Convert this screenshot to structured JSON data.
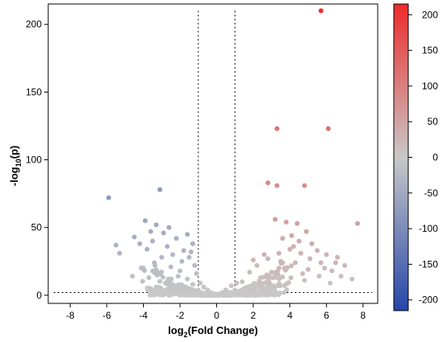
{
  "chart_data": {
    "type": "scatter",
    "title": "",
    "xlabel": {
      "prefix": "log",
      "subscript": "2",
      "suffix": "(Fold Change)"
    },
    "ylabel": {
      "prefix": "-log",
      "subscript": "10",
      "suffix": "(p)"
    },
    "xlim": [
      -9.2,
      8.8
    ],
    "ylim": [
      -6,
      215
    ],
    "xticks": [
      -8,
      -6,
      -4,
      -2,
      0,
      2,
      4,
      6,
      8
    ],
    "yticks": [
      0,
      50,
      100,
      150,
      200
    ],
    "thresholds": {
      "fold_change_lines": [
        -1,
        1
      ],
      "p_value_line": 2
    },
    "grid": false,
    "colorbar": {
      "placement": "right",
      "range": [
        -215,
        215
      ],
      "ticks": [
        200,
        150,
        100,
        50,
        0,
        -50,
        -100,
        -150,
        -200
      ],
      "colors": {
        "high": "#ef2b2b",
        "mid": "#c8c8c8",
        "low": "#2546a8"
      }
    },
    "colors": {
      "up_max": "#ef2b2b",
      "neutral": "#c8c8c8",
      "down_max": "#2546a8"
    },
    "point_color_rule": "color = colorbar value of sign(log2FC) * (-log10 p)",
    "points": [
      {
        "x": 5.7,
        "y": 210
      },
      {
        "x": 3.3,
        "y": 123
      },
      {
        "x": 6.1,
        "y": 123
      },
      {
        "x": 2.8,
        "y": 83
      },
      {
        "x": 3.3,
        "y": 81
      },
      {
        "x": 4.8,
        "y": 81
      },
      {
        "x": 7.7,
        "y": 53
      },
      {
        "x": 3.2,
        "y": 56
      },
      {
        "x": 3.8,
        "y": 54
      },
      {
        "x": 4.4,
        "y": 53
      },
      {
        "x": 4.9,
        "y": 47
      },
      {
        "x": 4.1,
        "y": 44
      },
      {
        "x": 3.6,
        "y": 42
      },
      {
        "x": 4.5,
        "y": 40
      },
      {
        "x": 5.2,
        "y": 38
      },
      {
        "x": 4.2,
        "y": 36
      },
      {
        "x": 5.5,
        "y": 33
      },
      {
        "x": 6.0,
        "y": 30
      },
      {
        "x": 6.6,
        "y": 28
      },
      {
        "x": 7.0,
        "y": 22
      },
      {
        "x": 6.8,
        "y": 14
      },
      {
        "x": 7.4,
        "y": 12
      },
      {
        "x": 6.3,
        "y": 18
      },
      {
        "x": 5.7,
        "y": 24
      },
      {
        "x": 5.1,
        "y": 27
      },
      {
        "x": 4.6,
        "y": 31
      },
      {
        "x": 4.0,
        "y": 34
      },
      {
        "x": 3.4,
        "y": 31
      },
      {
        "x": 2.8,
        "y": 27
      },
      {
        "x": 2.2,
        "y": 22
      },
      {
        "x": 1.8,
        "y": 17
      },
      {
        "x": 1.4,
        "y": 10
      },
      {
        "x": 2.4,
        "y": 13
      },
      {
        "x": 3.0,
        "y": 17
      },
      {
        "x": 3.7,
        "y": 20
      },
      {
        "x": 4.3,
        "y": 24
      },
      {
        "x": 5.0,
        "y": 19
      },
      {
        "x": 5.6,
        "y": 14
      },
      {
        "x": 6.2,
        "y": 9
      },
      {
        "x": 4.8,
        "y": 11
      },
      {
        "x": 3.9,
        "y": 9
      },
      {
        "x": 3.1,
        "y": 7
      },
      {
        "x": 2.5,
        "y": 6
      },
      {
        "x": 1.9,
        "y": 5
      },
      {
        "x": 1.3,
        "y": 3
      },
      {
        "x": 3.5,
        "y": 25
      },
      {
        "x": 2.6,
        "y": 30
      },
      {
        "x": 2.0,
        "y": 26
      },
      {
        "x": 4.7,
        "y": 16
      },
      {
        "x": 5.9,
        "y": 20
      },
      {
        "x": 6.5,
        "y": 24
      },
      {
        "x": -5.9,
        "y": 72
      },
      {
        "x": -3.1,
        "y": 78
      },
      {
        "x": -3.9,
        "y": 55
      },
      {
        "x": -3.3,
        "y": 52
      },
      {
        "x": -2.6,
        "y": 50
      },
      {
        "x": -2.9,
        "y": 46
      },
      {
        "x": -3.6,
        "y": 47
      },
      {
        "x": -4.5,
        "y": 43
      },
      {
        "x": -5.5,
        "y": 37
      },
      {
        "x": -5.3,
        "y": 31
      },
      {
        "x": -4.2,
        "y": 38
      },
      {
        "x": -3.8,
        "y": 34
      },
      {
        "x": -2.2,
        "y": 42
      },
      {
        "x": -1.6,
        "y": 45
      },
      {
        "x": -1.3,
        "y": 38
      },
      {
        "x": -1.8,
        "y": 33
      },
      {
        "x": -2.4,
        "y": 30
      },
      {
        "x": -3.0,
        "y": 28
      },
      {
        "x": -3.4,
        "y": 24
      },
      {
        "x": -4.0,
        "y": 20
      },
      {
        "x": -4.6,
        "y": 14
      },
      {
        "x": -3.7,
        "y": 13
      },
      {
        "x": -3.1,
        "y": 16
      },
      {
        "x": -2.5,
        "y": 21
      },
      {
        "x": -1.9,
        "y": 25
      },
      {
        "x": -1.5,
        "y": 28
      },
      {
        "x": -1.2,
        "y": 22
      },
      {
        "x": -1.1,
        "y": 16
      },
      {
        "x": -1.6,
        "y": 12
      },
      {
        "x": -2.1,
        "y": 14
      },
      {
        "x": -2.8,
        "y": 9
      },
      {
        "x": -3.3,
        "y": 6
      },
      {
        "x": -2.3,
        "y": 5
      },
      {
        "x": -1.7,
        "y": 6
      },
      {
        "x": -1.3,
        "y": 8
      },
      {
        "x": -2.0,
        "y": 18
      },
      {
        "x": -2.7,
        "y": 36
      },
      {
        "x": -1.4,
        "y": 32
      },
      {
        "x": -3.5,
        "y": 40
      },
      {
        "x": -0.9,
        "y": 9
      },
      {
        "x": -0.7,
        "y": 6
      },
      {
        "x": -0.5,
        "y": 4
      },
      {
        "x": -0.3,
        "y": 2
      },
      {
        "x": -0.1,
        "y": 1
      },
      {
        "x": 0.1,
        "y": 1
      },
      {
        "x": 0.3,
        "y": 2
      },
      {
        "x": 0.5,
        "y": 4
      },
      {
        "x": 0.8,
        "y": 7
      },
      {
        "x": 1.1,
        "y": 9
      },
      {
        "x": -0.8,
        "y": 2
      },
      {
        "x": 0.7,
        "y": 2
      },
      {
        "x": -1.0,
        "y": 4
      },
      {
        "x": 1.0,
        "y": 4
      },
      {
        "x": -0.4,
        "y": 1
      },
      {
        "x": 0.4,
        "y": 1
      }
    ]
  }
}
